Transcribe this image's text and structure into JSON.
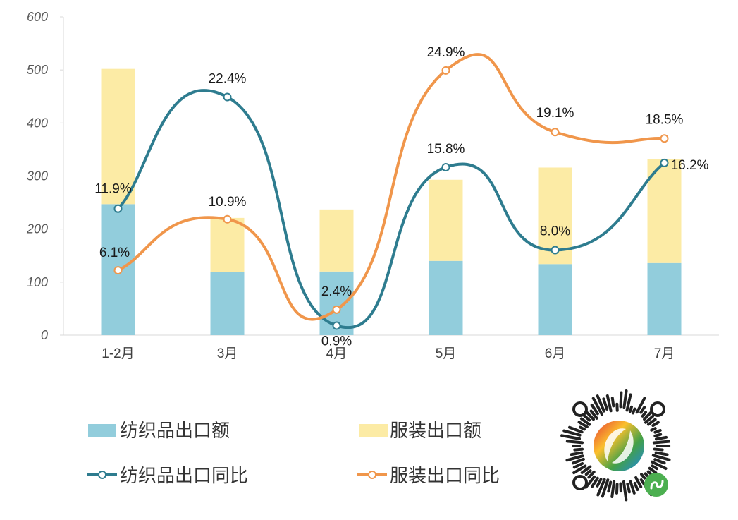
{
  "chart_data": {
    "type": "bar",
    "stacked": true,
    "title": "",
    "xlabel": "",
    "ylabel": "",
    "ylim": [
      0,
      600
    ],
    "yticks": [
      0,
      100,
      200,
      300,
      400,
      500,
      600
    ],
    "categories": [
      "1-2月",
      "3月",
      "4月",
      "5月",
      "6月",
      "7月"
    ],
    "series": [
      {
        "name": "纺织品出口额",
        "type": "bar",
        "color": "#92CDDC",
        "values": [
          247,
          119,
          120,
          140,
          134,
          136
        ]
      },
      {
        "name": "服装出口额",
        "type": "bar",
        "color": "#FCEBA5",
        "values": [
          255,
          102,
          117,
          153,
          182,
          196
        ]
      },
      {
        "name": "纺织品出口同比",
        "type": "line",
        "color": "#2E7C8F",
        "values": [
          11.9,
          22.4,
          0.9,
          15.8,
          8.0,
          16.2
        ],
        "labels": [
          "11.9%",
          "22.4%",
          "0.9%",
          "15.8%",
          "8.0%",
          "16.2%"
        ]
      },
      {
        "name": "服装出口同比",
        "type": "line",
        "color": "#F0964B",
        "values": [
          6.1,
          10.9,
          2.4,
          24.9,
          19.1,
          18.5
        ],
        "labels": [
          "6.1%",
          "10.9%",
          "2.4%",
          "24.9%",
          "19.1%",
          "18.5%"
        ]
      }
    ],
    "legend_position": "bottom-left",
    "grid": false
  },
  "legend": {
    "textile_amount": "纺织品出口额",
    "apparel_amount": "服装出口额",
    "textile_yoy": "纺织品出口同比",
    "apparel_yoy": "服装出口同比"
  }
}
